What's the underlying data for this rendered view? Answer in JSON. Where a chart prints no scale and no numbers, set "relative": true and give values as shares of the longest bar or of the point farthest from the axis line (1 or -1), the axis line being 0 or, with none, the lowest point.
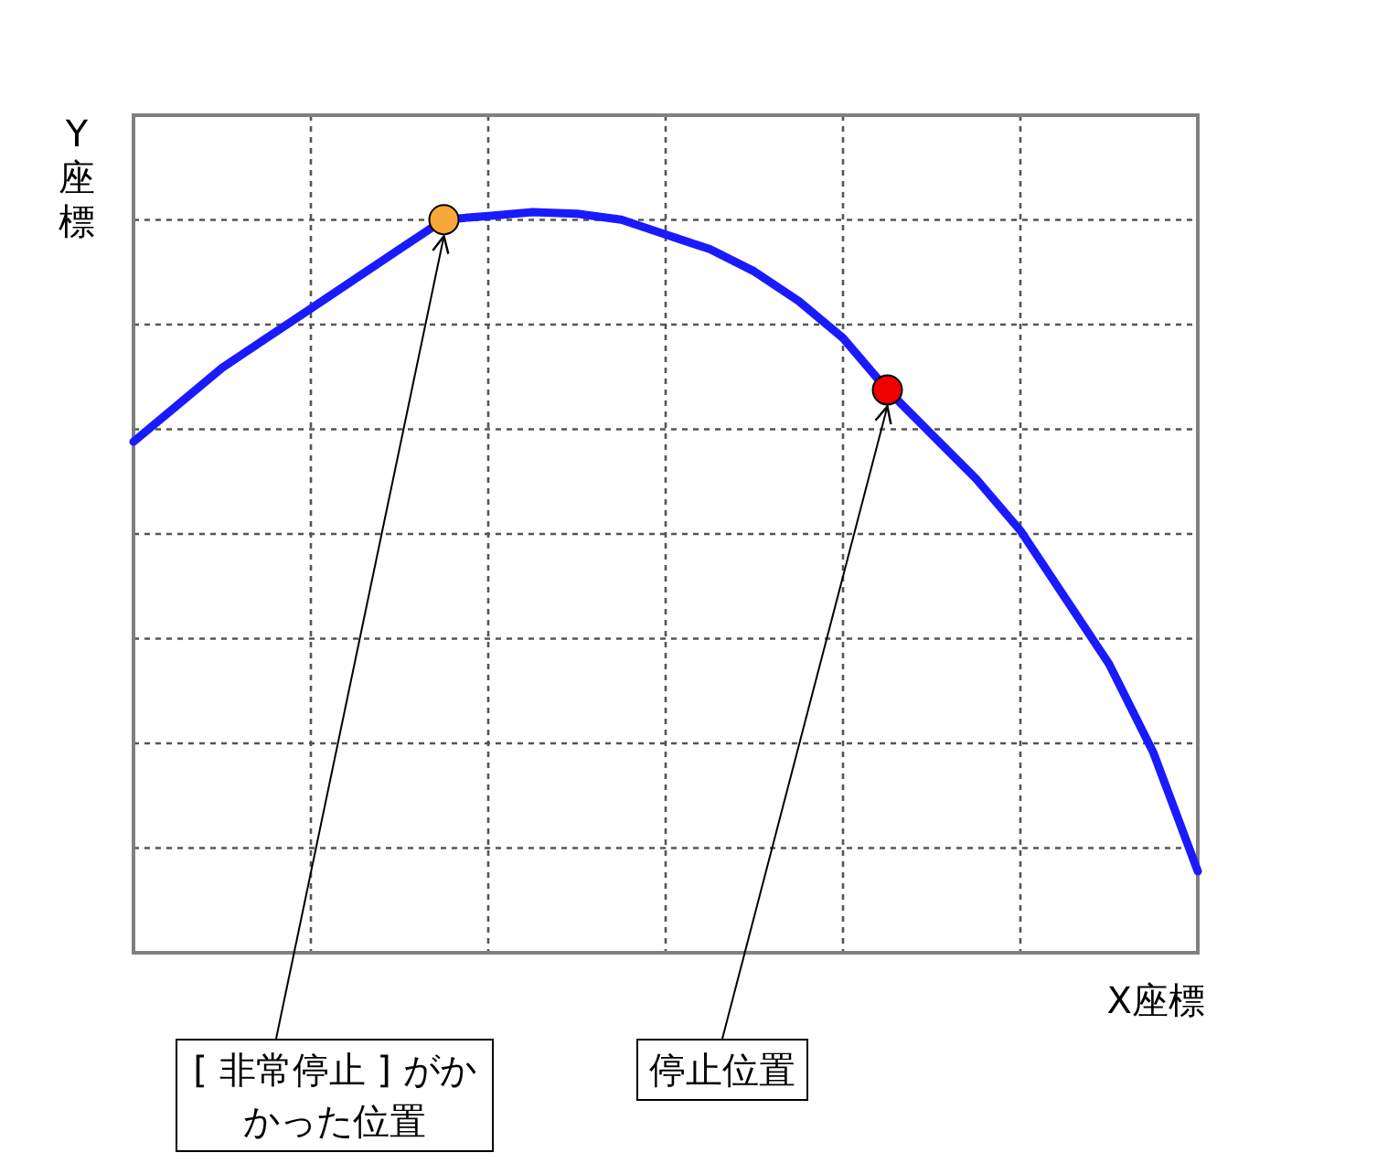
{
  "chart_data": {
    "type": "line",
    "xlabel": "X座標",
    "ylabel": "Y座標",
    "relative": true,
    "grid": true,
    "categories": [
      null,
      null,
      null,
      null,
      null,
      null,
      null,
      null,
      null,
      null,
      null,
      null,
      null,
      null,
      null,
      null,
      null,
      null,
      null,
      null,
      null,
      null,
      null,
      null,
      null
    ],
    "series": [
      {
        "color": "#1a1aff",
        "values": [
          0.69,
          0.74,
          0.79,
          0.83,
          0.87,
          0.91,
          0.95,
          0.99,
          0.995,
          1.0,
          0.998,
          0.99,
          0.97,
          0.95,
          0.92,
          0.88,
          0.83,
          0.76,
          0.7,
          0.64,
          0.57,
          0.48,
          0.39,
          0.27,
          0.11
        ],
        "colors": [
          null,
          null,
          null,
          null,
          null,
          null,
          null,
          "#f8a838",
          null,
          null,
          null,
          null,
          null,
          null,
          null,
          null,
          null,
          "#ee0000",
          null,
          null,
          null,
          null,
          null,
          null,
          null
        ]
      }
    ],
    "annotations": [
      "[ 非常停止 ] がかかった位置",
      "停止位置"
    ]
  }
}
